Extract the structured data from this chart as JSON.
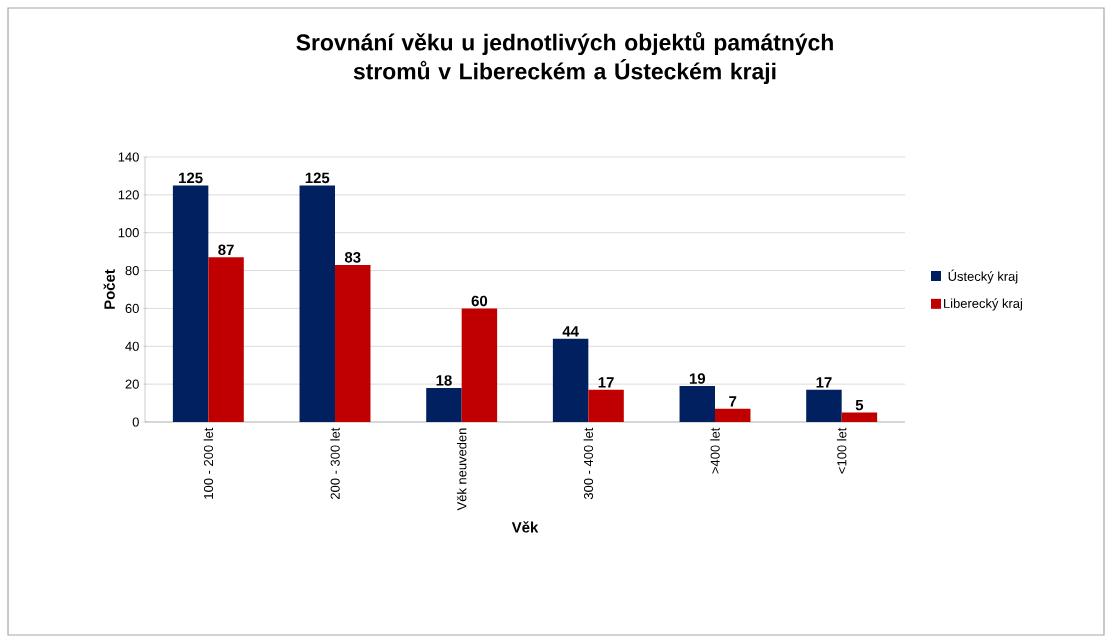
{
  "chart_data": {
    "type": "bar",
    "title": "Srovnání věku u jednotlivých objektů památných stromů v Libereckém a Ústeckém kraji",
    "xlabel": "Věk",
    "ylabel": "Počet",
    "categories": [
      "100 - 200 let",
      "200 - 300 let",
      "Věk neuveden",
      "300 - 400 let",
      ">400 let",
      "<100 let"
    ],
    "series": [
      {
        "name": "Ústecký kraj",
        "color": "#002060",
        "values": [
          125,
          125,
          18,
          44,
          19,
          17
        ]
      },
      {
        "name": "Liberecký kraj",
        "color": "#c00000",
        "values": [
          87,
          83,
          60,
          17,
          7,
          5
        ]
      }
    ],
    "ylim": [
      0,
      140
    ],
    "yticks": [
      0,
      20,
      40,
      60,
      80,
      100,
      120,
      140
    ],
    "grid": "y",
    "legend": "right",
    "data_labels": true
  }
}
